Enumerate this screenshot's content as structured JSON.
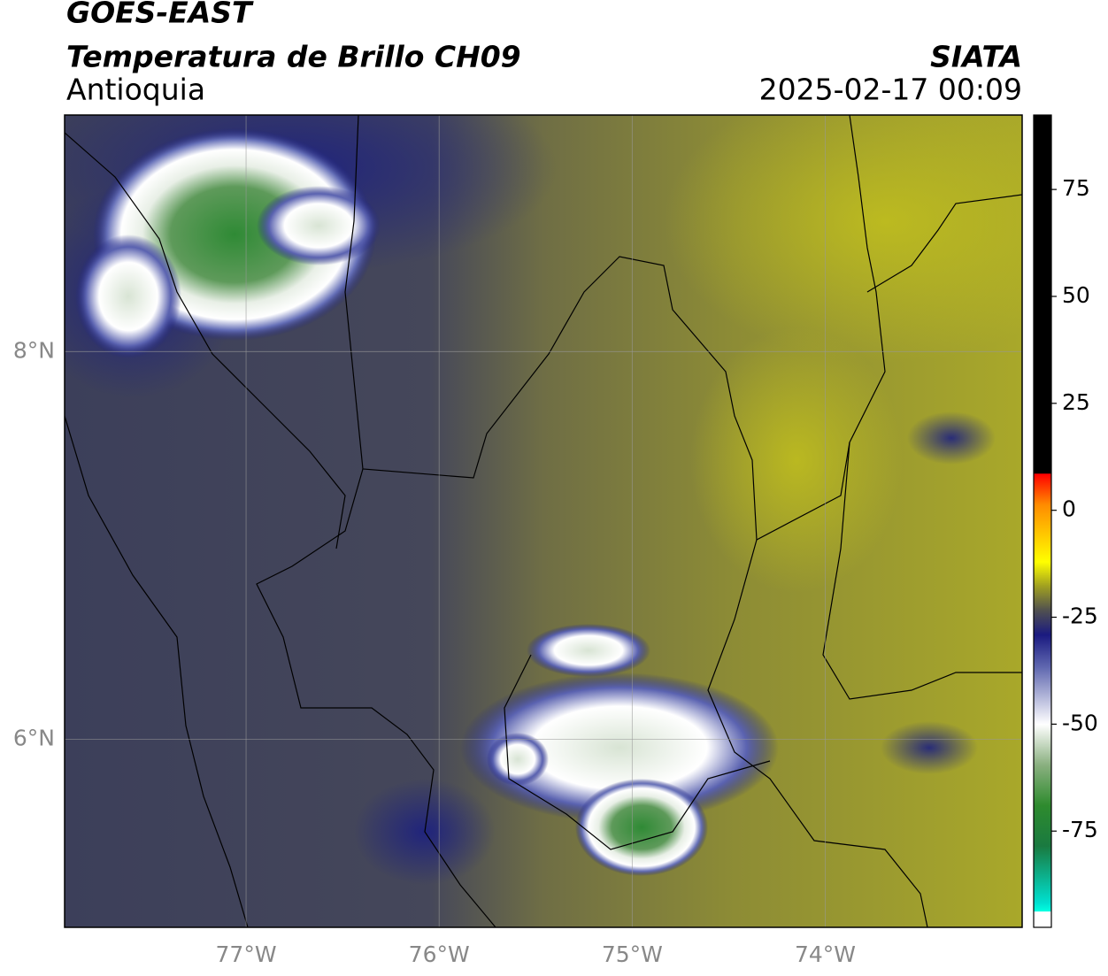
{
  "header": {
    "title": "GOES-EAST",
    "subtitle": "Temperatura de Brillo CH09",
    "region": "Antioquia",
    "source": "SIATA",
    "datetime": "2025-02-17 00:09"
  },
  "map": {
    "lon_lim": [
      -77.94,
      -72.98
    ],
    "lat_lim": [
      5.03,
      9.22
    ],
    "lon_ticks": [
      {
        "value": -77,
        "label": "77°W"
      },
      {
        "value": -76,
        "label": "76°W"
      },
      {
        "value": -75,
        "label": "75°W"
      },
      {
        "value": -74,
        "label": "74°W"
      }
    ],
    "lat_ticks": [
      {
        "value": 8,
        "label": "8°N"
      },
      {
        "value": 6,
        "label": "6°N"
      }
    ],
    "grid": true
  },
  "colorbar": {
    "lim": [
      -97.5,
      92.4
    ],
    "ticks": [
      75,
      50,
      25,
      0,
      -25,
      -50,
      -75
    ]
  }
}
